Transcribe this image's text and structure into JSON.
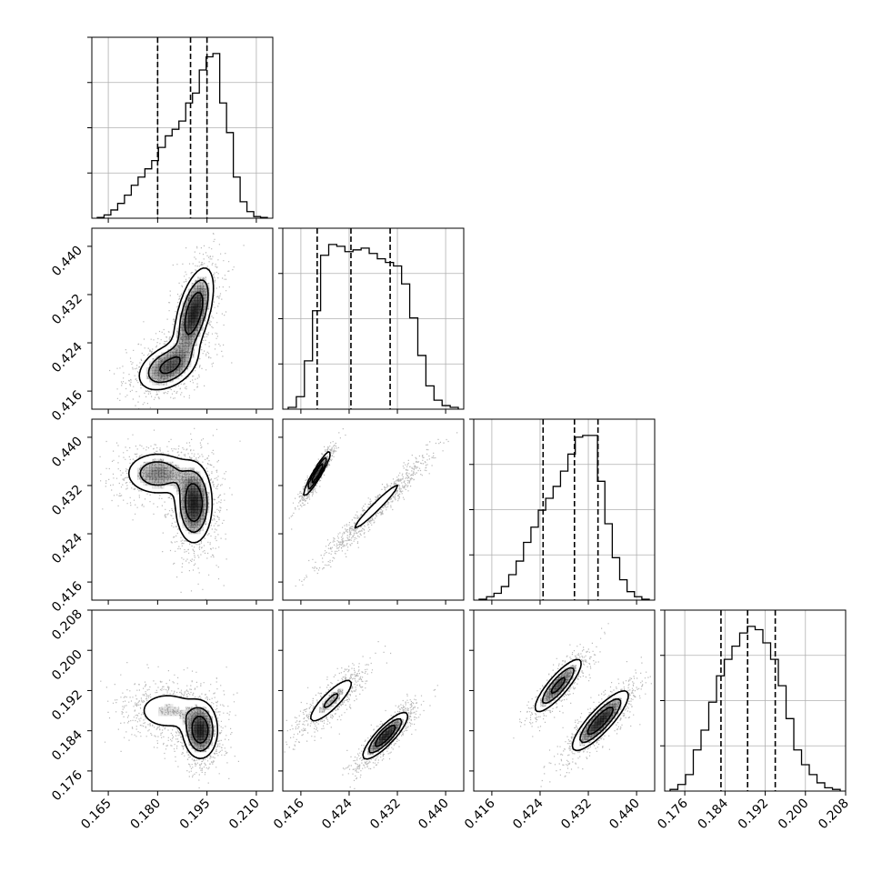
{
  "chart_data": {
    "type": "corner",
    "parameters": [
      {
        "range": [
          0.16,
          0.215
        ],
        "ticks": [
          0.165,
          0.18,
          0.195,
          0.21
        ],
        "tick_labels": [
          "0.165",
          "0.180",
          "0.195",
          "0.210"
        ],
        "quantiles": [
          0.18,
          0.19,
          0.195
        ]
      },
      {
        "range": [
          0.413,
          0.443
        ],
        "ticks": [
          0.416,
          0.424,
          0.432,
          0.44
        ],
        "tick_labels": [
          "0.416",
          "0.424",
          "0.432",
          "0.440"
        ],
        "quantiles": [
          0.4187,
          0.4243,
          0.4308
        ]
      },
      {
        "range": [
          0.413,
          0.443
        ],
        "ticks": [
          0.416,
          0.424,
          0.432,
          0.44
        ],
        "tick_labels": [
          "0.416",
          "0.424",
          "0.432",
          "0.440"
        ],
        "quantiles": [
          0.4245,
          0.4297,
          0.4336
        ]
      },
      {
        "range": [
          0.172,
          0.208
        ],
        "ticks": [
          0.176,
          0.184,
          0.192,
          0.2,
          0.208
        ],
        "tick_labels": [
          "0.176",
          "0.184",
          "0.192",
          "0.200",
          "0.208"
        ],
        "quantiles": [
          0.1832,
          0.1885,
          0.194
        ]
      }
    ],
    "histograms": [
      [
        0.005,
        0.02,
        0.05,
        0.09,
        0.14,
        0.2,
        0.25,
        0.3,
        0.35,
        0.43,
        0.5,
        0.54,
        0.59,
        0.7,
        0.76,
        0.9,
        0.98,
        1.0,
        0.7,
        0.52,
        0.25,
        0.1,
        0.04,
        0.01,
        0.005
      ],
      [
        0.01,
        0.07,
        0.27,
        0.55,
        0.86,
        0.92,
        0.91,
        0.88,
        0.89,
        0.9,
        0.87,
        0.84,
        0.82,
        0.8,
        0.7,
        0.51,
        0.3,
        0.13,
        0.05,
        0.02,
        0.01
      ],
      [
        0.005,
        0.02,
        0.04,
        0.08,
        0.15,
        0.23,
        0.34,
        0.43,
        0.53,
        0.6,
        0.67,
        0.76,
        0.86,
        0.96,
        0.97,
        0.97,
        0.7,
        0.45,
        0.25,
        0.12,
        0.05,
        0.02,
        0.005
      ],
      [
        0.01,
        0.04,
        0.1,
        0.25,
        0.37,
        0.54,
        0.7,
        0.8,
        0.88,
        0.96,
        1.0,
        0.98,
        0.9,
        0.8,
        0.64,
        0.44,
        0.25,
        0.16,
        0.1,
        0.05,
        0.02,
        0.01
      ]
    ],
    "pairs": [
      {
        "row": 1,
        "col": 0,
        "modes": [
          {
            "mx": 0.191,
            "my": 0.429,
            "sx": 0.0032,
            "sy": 0.004,
            "rho": 0.55,
            "w": 0.6
          },
          {
            "mx": 0.183,
            "my": 0.42,
            "sx": 0.005,
            "sy": 0.0022,
            "rho": 0.4,
            "w": 0.4
          }
        ]
      },
      {
        "row": 2,
        "col": 0,
        "modes": [
          {
            "mx": 0.191,
            "my": 0.429,
            "sx": 0.003,
            "sy": 0.0035,
            "rho": 0.0,
            "w": 0.6
          },
          {
            "mx": 0.18,
            "my": 0.434,
            "sx": 0.0055,
            "sy": 0.002,
            "rho": 0.0,
            "w": 0.4
          }
        ]
      },
      {
        "row": 2,
        "col": 1,
        "modes": [
          {
            "mx": 0.4187,
            "my": 0.434,
            "sx": 0.0012,
            "sy": 0.002,
            "rho": 0.94,
            "w": 0.4
          },
          {
            "mx": 0.4285,
            "my": 0.4285,
            "sx": 0.0035,
            "sy": 0.0035,
            "rho": 0.97,
            "w": 0.6
          }
        ]
      },
      {
        "row": 3,
        "col": 0,
        "modes": [
          {
            "mx": 0.193,
            "my": 0.184,
            "sx": 0.0028,
            "sy": 0.003,
            "rho": 0.0,
            "w": 0.6
          },
          {
            "mx": 0.183,
            "my": 0.188,
            "sx": 0.006,
            "sy": 0.0025,
            "rho": 0.0,
            "w": 0.4
          }
        ]
      },
      {
        "row": 3,
        "col": 1,
        "modes": [
          {
            "mx": 0.421,
            "my": 0.19,
            "sx": 0.0025,
            "sy": 0.003,
            "rho": 0.85,
            "w": 0.4
          },
          {
            "mx": 0.43,
            "my": 0.183,
            "sx": 0.002,
            "sy": 0.0025,
            "rho": 0.85,
            "w": 0.6
          }
        ]
      },
      {
        "row": 3,
        "col": 2,
        "modes": [
          {
            "mx": 0.427,
            "my": 0.193,
            "sx": 0.0022,
            "sy": 0.003,
            "rho": 0.85,
            "w": 0.4
          },
          {
            "mx": 0.434,
            "my": 0.186,
            "sx": 0.0025,
            "sy": 0.0032,
            "rho": 0.85,
            "w": 0.6
          }
        ]
      }
    ],
    "colors": {
      "axes": "#000000",
      "grid": "#b0b0b0",
      "points": "#000000",
      "fill_dark": "#000000",
      "fill_light": "#ffffff"
    },
    "grid": true
  }
}
